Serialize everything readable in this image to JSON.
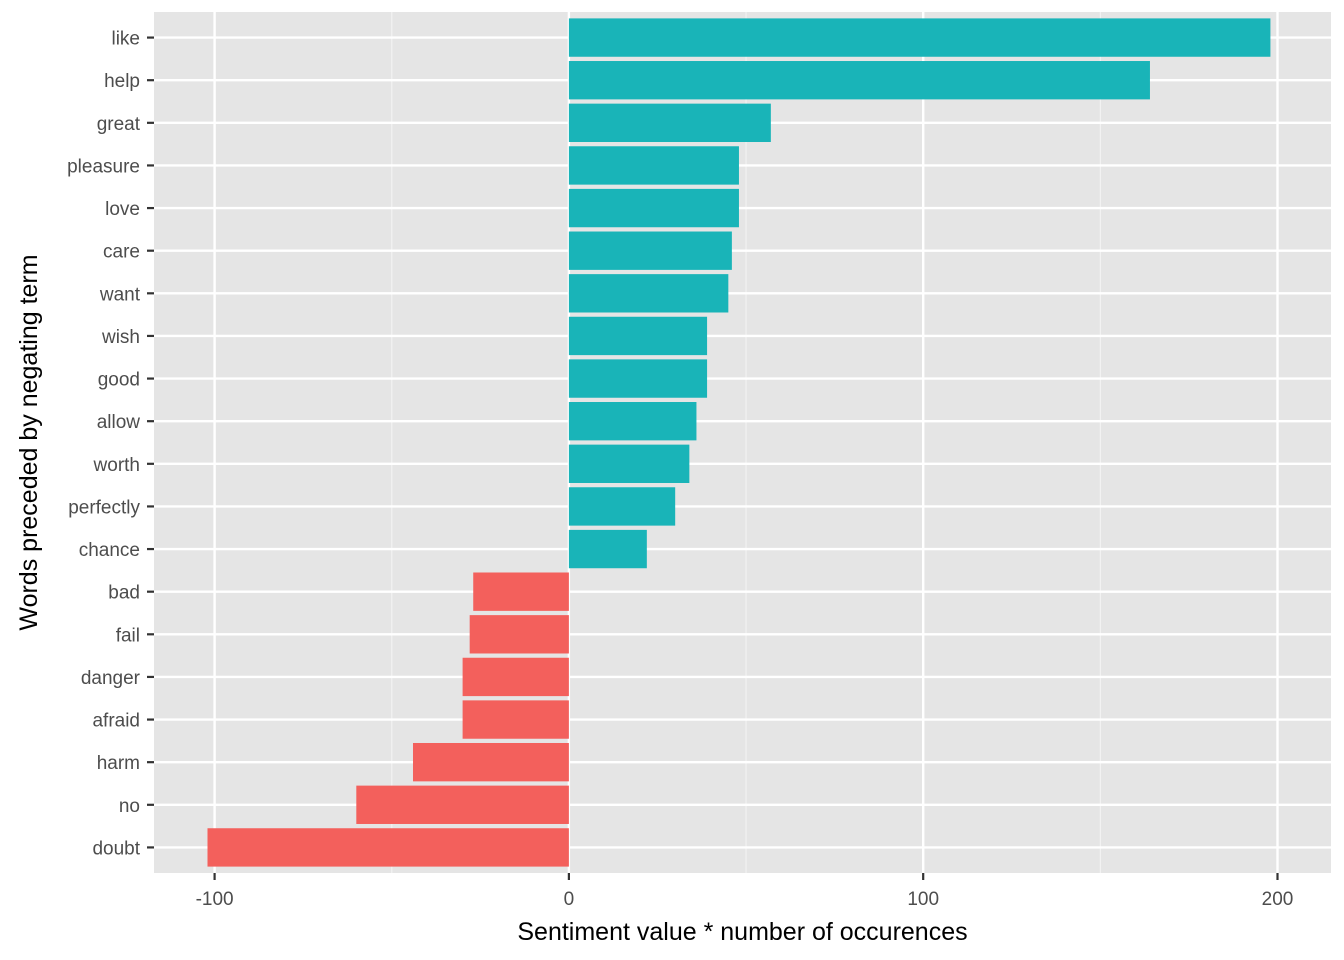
{
  "chart_data": {
    "type": "bar",
    "orientation": "horizontal",
    "title": "",
    "xlabel": "Sentiment value * number of occurences",
    "ylabel": "Words preceded by negating term",
    "xlim": [
      -102,
      200
    ],
    "xticks": [
      -100,
      0,
      100,
      200
    ],
    "xtick_labels": [
      "-100",
      "0",
      "100",
      "200"
    ],
    "grid": true,
    "legend": "none",
    "categories": [
      "like",
      "help",
      "great",
      "pleasure",
      "love",
      "care",
      "want",
      "wish",
      "good",
      "allow",
      "worth",
      "perfectly",
      "chance",
      "bad",
      "fail",
      "danger",
      "afraid",
      "harm",
      "no",
      "doubt"
    ],
    "values": [
      198,
      164,
      57,
      48,
      48,
      46,
      45,
      39,
      39,
      36,
      34,
      30,
      22,
      -27,
      -28,
      -30,
      -30,
      -44,
      -60,
      -102
    ],
    "colors": {
      "positive": "#19B4B8",
      "negative": "#F3605C",
      "panel": "#E5E5E5",
      "grid_major": "#FFFFFF",
      "grid_minor": "#F2F2F2"
    }
  }
}
